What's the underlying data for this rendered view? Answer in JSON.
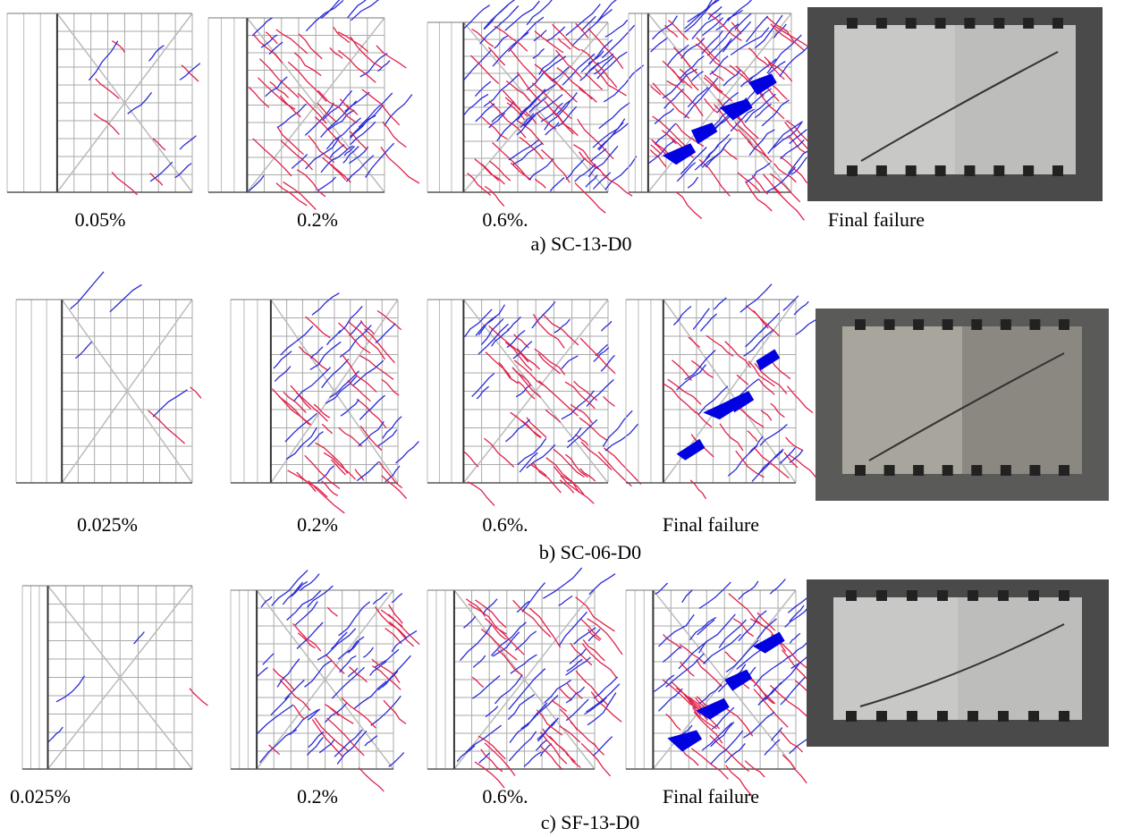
{
  "rows": [
    {
      "labels": [
        "0.05%",
        "0.2%",
        "0.6%.",
        "Final failure"
      ],
      "caption": "a)   SC-13-D0"
    },
    {
      "labels": [
        "0.025%",
        "0.2%",
        "0.6%.",
        "Final failure"
      ],
      "caption": "b)   SC-06-D0"
    },
    {
      "labels": [
        "0.025%",
        "0.2%",
        "0.6%.",
        "Final failure"
      ],
      "caption": "c)   SF-13-D0"
    }
  ]
}
